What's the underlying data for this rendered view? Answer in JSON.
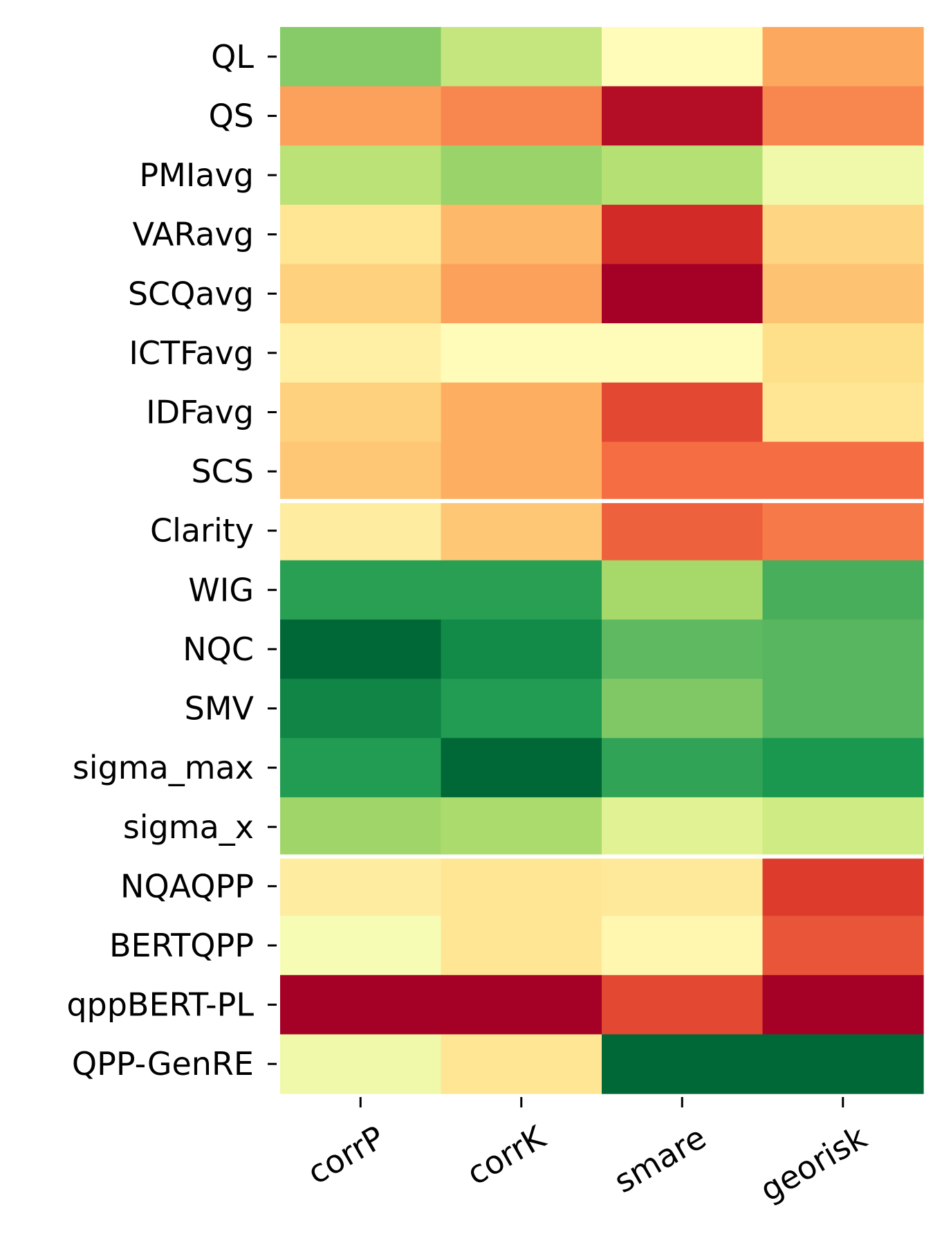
{
  "chart_data": {
    "type": "heatmap",
    "title": "",
    "xlabel": "",
    "ylabel": "",
    "colormap": "RdYlGn",
    "value_range": [
      0,
      1
    ],
    "columns": [
      "corrP",
      "corrK",
      "smare",
      "georisk"
    ],
    "rows": [
      "QL",
      "QS",
      "PMIavg",
      "VARavg ",
      "SCQavg",
      "ICTFavg",
      "IDFavg",
      "SCS",
      "Clarity",
      "WIG",
      "NQC",
      "SMV",
      "sigma_max",
      "sigma_x",
      "NQAQPP",
      "BERTQPP",
      "qppBERT-PL",
      "QPP-GenRE"
    ],
    "group_breaks_after_row": [
      7,
      13
    ],
    "values": [
      [
        0.75,
        0.64,
        0.49,
        0.29
      ],
      [
        0.28,
        0.24,
        0.03,
        0.24
      ],
      [
        0.66,
        0.72,
        0.67,
        0.54
      ],
      [
        0.42,
        0.32,
        0.09,
        0.38
      ],
      [
        0.37,
        0.28,
        0.0,
        0.34
      ],
      [
        0.45,
        0.49,
        0.49,
        0.4
      ],
      [
        0.37,
        0.3,
        0.14,
        0.42
      ],
      [
        0.35,
        0.3,
        0.2,
        0.2
      ],
      [
        0.44,
        0.35,
        0.18,
        0.22
      ],
      [
        0.88,
        0.88,
        0.7,
        0.84
      ],
      [
        1.0,
        0.93,
        0.81,
        0.82
      ],
      [
        0.94,
        0.89,
        0.76,
        0.82
      ],
      [
        0.89,
        1.0,
        0.87,
        0.9
      ],
      [
        0.71,
        0.69,
        0.58,
        0.62
      ],
      [
        0.44,
        0.42,
        0.43,
        0.12
      ],
      [
        0.52,
        0.42,
        0.47,
        0.16
      ],
      [
        0.0,
        0.0,
        0.14,
        0.0
      ],
      [
        0.54,
        0.42,
        1.0,
        1.0
      ]
    ]
  }
}
